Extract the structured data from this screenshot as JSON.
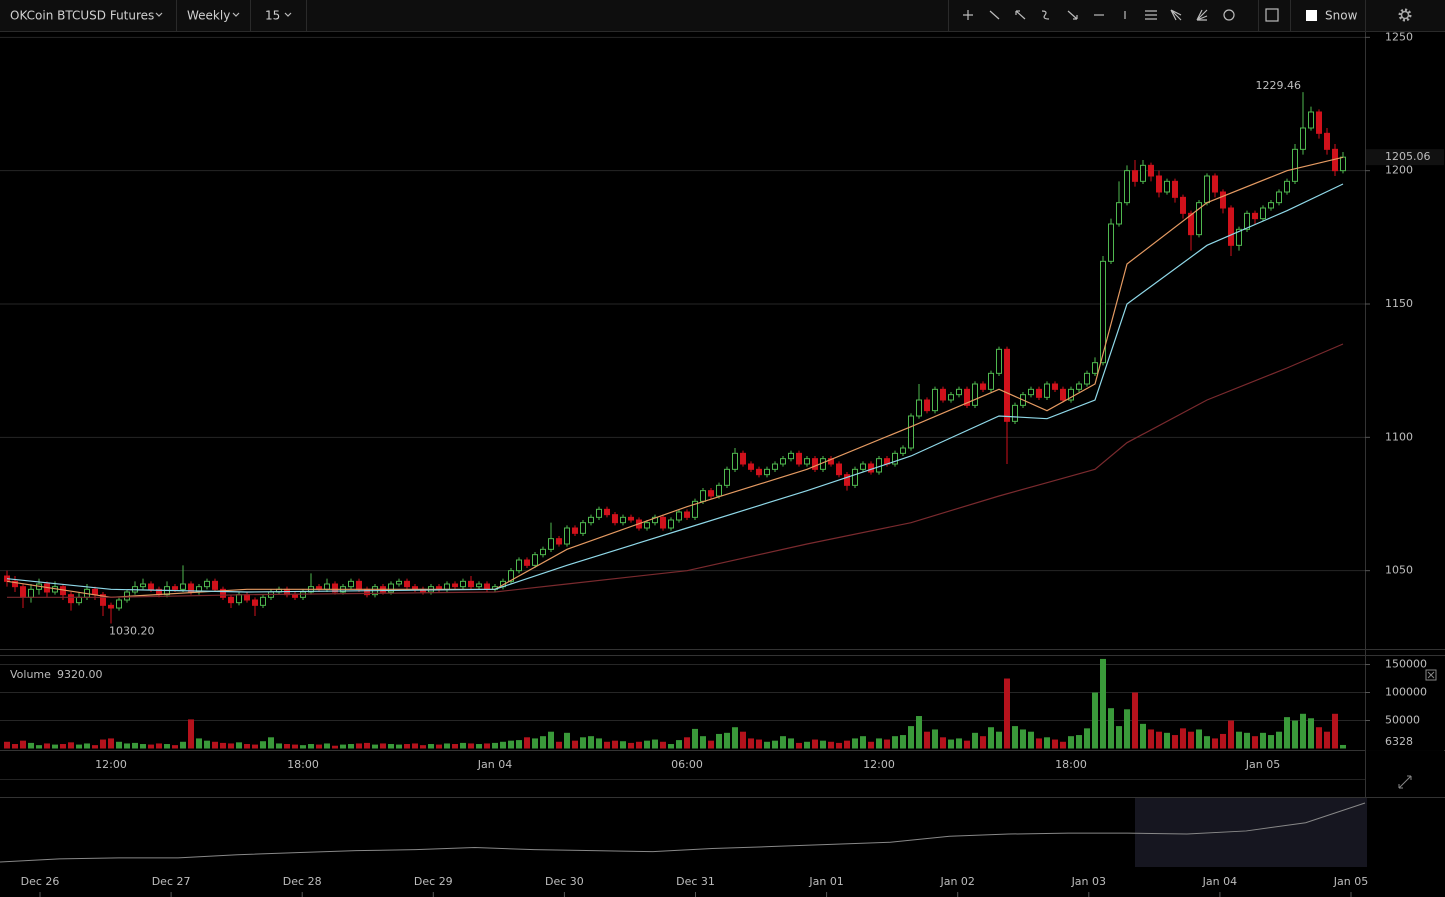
{
  "toolbar": {
    "symbol": "OKCoin BTCUSD Futures",
    "range": "Weekly",
    "interval": "15",
    "theme": "Snow"
  },
  "chart_data": {
    "type": "candlestick",
    "categories": [
      null,
      null,
      null,
      null,
      null,
      null,
      null,
      null,
      null,
      null,
      null,
      null,
      null,
      "12:00",
      null,
      null,
      null,
      null,
      null,
      null,
      null,
      null,
      null,
      null,
      null,
      null,
      null,
      null,
      null,
      null,
      null,
      null,
      null,
      null,
      null,
      null,
      null,
      "18:00",
      null,
      null,
      null,
      null,
      null,
      null,
      null,
      null,
      null,
      null,
      null,
      null,
      null,
      null,
      null,
      null,
      null,
      null,
      null,
      null,
      null,
      null,
      null,
      "Jan 04",
      null,
      null,
      null,
      null,
      null,
      null,
      null,
      null,
      null,
      null,
      null,
      null,
      null,
      null,
      null,
      null,
      null,
      null,
      null,
      null,
      null,
      null,
      null,
      "06:00",
      null,
      null,
      null,
      null,
      null,
      null,
      null,
      null,
      null,
      null,
      null,
      null,
      null,
      null,
      null,
      null,
      null,
      null,
      null,
      null,
      null,
      null,
      null,
      "12:00",
      null,
      null,
      null,
      null,
      null,
      null,
      null,
      null,
      null,
      null,
      null,
      null,
      null,
      null,
      null,
      null,
      null,
      null,
      null,
      null,
      null,
      null,
      null,
      "18:00",
      null,
      null,
      null,
      null,
      null,
      null,
      null,
      null,
      null,
      null,
      null,
      null,
      null,
      null,
      null,
      null,
      null,
      null,
      null,
      null,
      null,
      null,
      null,
      "Jan 05",
      null,
      null,
      null,
      null,
      null,
      null,
      null,
      null,
      null,
      null
    ],
    "ohlc": [
      [
        1048,
        1050,
        1044,
        1046
      ],
      [
        1046,
        1048,
        1042,
        1044
      ],
      [
        1044,
        1045,
        1036,
        1040
      ],
      [
        1040,
        1045,
        1038,
        1043
      ],
      [
        1043,
        1047,
        1041,
        1045
      ],
      [
        1045,
        1046,
        1040,
        1042
      ],
      [
        1042,
        1046,
        1041,
        1044
      ],
      [
        1044,
        1045,
        1039,
        1041
      ],
      [
        1041,
        1042,
        1035,
        1038
      ],
      [
        1038,
        1042,
        1037,
        1040
      ],
      [
        1040,
        1045,
        1039,
        1043
      ],
      [
        1043,
        1044,
        1039,
        1041
      ],
      [
        1041,
        1042,
        1033,
        1037
      ],
      [
        1037,
        1038,
        1030.2,
        1036
      ],
      [
        1036,
        1040,
        1035,
        1039
      ],
      [
        1039,
        1043,
        1038,
        1042
      ],
      [
        1042,
        1046,
        1041,
        1044
      ],
      [
        1044,
        1047,
        1043,
        1045
      ],
      [
        1045,
        1046,
        1042,
        1043
      ],
      [
        1043,
        1044,
        1040,
        1041
      ],
      [
        1041,
        1046,
        1040,
        1044
      ],
      [
        1044,
        1045,
        1042,
        1043
      ],
      [
        1043,
        1052,
        1042,
        1045
      ],
      [
        1045,
        1046,
        1041,
        1042
      ],
      [
        1042,
        1045,
        1041,
        1044
      ],
      [
        1044,
        1047,
        1043,
        1046
      ],
      [
        1046,
        1047,
        1042,
        1043
      ],
      [
        1043,
        1044,
        1039,
        1040
      ],
      [
        1040,
        1041,
        1036,
        1038
      ],
      [
        1038,
        1042,
        1037,
        1041
      ],
      [
        1041,
        1042,
        1038,
        1039
      ],
      [
        1039,
        1040,
        1033,
        1037
      ],
      [
        1037,
        1041,
        1036,
        1040
      ],
      [
        1040,
        1043,
        1039,
        1042
      ],
      [
        1042,
        1044,
        1041,
        1043
      ],
      [
        1043,
        1044,
        1040,
        1041
      ],
      [
        1041,
        1042,
        1039,
        1040
      ],
      [
        1040,
        1043,
        1039,
        1042
      ],
      [
        1042,
        1049,
        1041,
        1044
      ],
      [
        1044,
        1045,
        1042,
        1043
      ],
      [
        1043,
        1047,
        1042,
        1045
      ],
      [
        1045,
        1046,
        1041,
        1042
      ],
      [
        1042,
        1045,
        1041,
        1044
      ],
      [
        1044,
        1047,
        1043,
        1046
      ],
      [
        1046,
        1047,
        1042,
        1043
      ],
      [
        1043,
        1044,
        1040,
        1041
      ],
      [
        1041,
        1045,
        1040,
        1044
      ],
      [
        1044,
        1045,
        1041,
        1042
      ],
      [
        1042,
        1046,
        1041,
        1045
      ],
      [
        1045,
        1047,
        1044,
        1046
      ],
      [
        1046,
        1047,
        1043,
        1044
      ],
      [
        1044,
        1045,
        1042,
        1043
      ],
      [
        1043,
        1044,
        1041,
        1042
      ],
      [
        1042,
        1045,
        1041,
        1044
      ],
      [
        1044,
        1045,
        1042,
        1043
      ],
      [
        1043,
        1046,
        1042,
        1045
      ],
      [
        1045,
        1046,
        1043,
        1044
      ],
      [
        1044,
        1047,
        1043,
        1046
      ],
      [
        1046,
        1048,
        1043,
        1044
      ],
      [
        1044,
        1046,
        1043,
        1045
      ],
      [
        1045,
        1046,
        1042,
        1043
      ],
      [
        1043,
        1045,
        1042,
        1044
      ],
      [
        1044,
        1047,
        1043,
        1046
      ],
      [
        1046,
        1051,
        1045,
        1050
      ],
      [
        1050,
        1055,
        1049,
        1054
      ],
      [
        1054,
        1055,
        1051,
        1052
      ],
      [
        1052,
        1057,
        1051,
        1056
      ],
      [
        1056,
        1059,
        1055,
        1058
      ],
      [
        1058,
        1068,
        1057,
        1062
      ],
      [
        1062,
        1063,
        1059,
        1060
      ],
      [
        1060,
        1067,
        1059,
        1066
      ],
      [
        1066,
        1067,
        1063,
        1064
      ],
      [
        1064,
        1069,
        1063,
        1068
      ],
      [
        1068,
        1071,
        1067,
        1070
      ],
      [
        1070,
        1074,
        1069,
        1073
      ],
      [
        1073,
        1074,
        1070,
        1071
      ],
      [
        1071,
        1072,
        1067,
        1068
      ],
      [
        1068,
        1071,
        1067,
        1070
      ],
      [
        1070,
        1071,
        1068,
        1069
      ],
      [
        1069,
        1070,
        1065,
        1066
      ],
      [
        1066,
        1069,
        1065,
        1068
      ],
      [
        1068,
        1071,
        1067,
        1070
      ],
      [
        1070,
        1071,
        1065,
        1066
      ],
      [
        1066,
        1070,
        1065,
        1069
      ],
      [
        1069,
        1073,
        1068,
        1072
      ],
      [
        1072,
        1073,
        1069,
        1070
      ],
      [
        1070,
        1077,
        1069,
        1076
      ],
      [
        1076,
        1081,
        1075,
        1080
      ],
      [
        1080,
        1081,
        1077,
        1078
      ],
      [
        1078,
        1083,
        1077,
        1082
      ],
      [
        1082,
        1089,
        1081,
        1088
      ],
      [
        1088,
        1096,
        1087,
        1094
      ],
      [
        1094,
        1095,
        1089,
        1090
      ],
      [
        1090,
        1091,
        1087,
        1088
      ],
      [
        1088,
        1089,
        1085,
        1086
      ],
      [
        1086,
        1089,
        1085,
        1088
      ],
      [
        1088,
        1091,
        1087,
        1090
      ],
      [
        1090,
        1093,
        1089,
        1092
      ],
      [
        1092,
        1095,
        1091,
        1094
      ],
      [
        1094,
        1095,
        1089,
        1090
      ],
      [
        1090,
        1093,
        1089,
        1092
      ],
      [
        1092,
        1093,
        1087,
        1088
      ],
      [
        1088,
        1093,
        1087,
        1092
      ],
      [
        1092,
        1093,
        1089,
        1090
      ],
      [
        1090,
        1091,
        1085,
        1086
      ],
      [
        1086,
        1087,
        1080,
        1082
      ],
      [
        1082,
        1089,
        1081,
        1088
      ],
      [
        1088,
        1091,
        1087,
        1090
      ],
      [
        1090,
        1091,
        1086,
        1087
      ],
      [
        1087,
        1093,
        1086,
        1092
      ],
      [
        1092,
        1093,
        1089,
        1090
      ],
      [
        1090,
        1095,
        1089,
        1094
      ],
      [
        1094,
        1097,
        1093,
        1096
      ],
      [
        1096,
        1109,
        1095,
        1108
      ],
      [
        1108,
        1120,
        1107,
        1114
      ],
      [
        1114,
        1115,
        1109,
        1110
      ],
      [
        1110,
        1119,
        1109,
        1118
      ],
      [
        1118,
        1119,
        1113,
        1114
      ],
      [
        1114,
        1117,
        1113,
        1116
      ],
      [
        1116,
        1119,
        1115,
        1118
      ],
      [
        1118,
        1119,
        1111,
        1112
      ],
      [
        1112,
        1121,
        1111,
        1120
      ],
      [
        1120,
        1121,
        1117,
        1118
      ],
      [
        1118,
        1125,
        1117,
        1124
      ],
      [
        1124,
        1134,
        1123,
        1133
      ],
      [
        1133,
        1134,
        1090,
        1106
      ],
      [
        1106,
        1113,
        1105,
        1112
      ],
      [
        1112,
        1117,
        1111,
        1116
      ],
      [
        1116,
        1119,
        1115,
        1118
      ],
      [
        1118,
        1119,
        1114,
        1115
      ],
      [
        1115,
        1121,
        1114,
        1120
      ],
      [
        1120,
        1121,
        1117,
        1118
      ],
      [
        1118,
        1119,
        1113,
        1114
      ],
      [
        1114,
        1119,
        1113,
        1118
      ],
      [
        1118,
        1121,
        1117,
        1120
      ],
      [
        1120,
        1125,
        1119,
        1124
      ],
      [
        1124,
        1130,
        1123,
        1128
      ],
      [
        1128,
        1168,
        1127,
        1166
      ],
      [
        1166,
        1182,
        1165,
        1180
      ],
      [
        1180,
        1196,
        1179,
        1188
      ],
      [
        1188,
        1202,
        1187,
        1200
      ],
      [
        1200,
        1204,
        1194,
        1196
      ],
      [
        1196,
        1204,
        1195,
        1202
      ],
      [
        1202,
        1203,
        1196,
        1198
      ],
      [
        1198,
        1200,
        1190,
        1192
      ],
      [
        1192,
        1197,
        1191,
        1196
      ],
      [
        1196,
        1197,
        1188,
        1190
      ],
      [
        1190,
        1191,
        1182,
        1184
      ],
      [
        1184,
        1185,
        1170,
        1176
      ],
      [
        1176,
        1189,
        1175,
        1188
      ],
      [
        1188,
        1199,
        1187,
        1198
      ],
      [
        1198,
        1199,
        1190,
        1192
      ],
      [
        1192,
        1193,
        1184,
        1186
      ],
      [
        1186,
        1187,
        1168,
        1172
      ],
      [
        1172,
        1179,
        1170,
        1178
      ],
      [
        1178,
        1185,
        1177,
        1184
      ],
      [
        1184,
        1185,
        1180,
        1182
      ],
      [
        1182,
        1187,
        1181,
        1186
      ],
      [
        1186,
        1189,
        1185,
        1188
      ],
      [
        1188,
        1193,
        1187,
        1192
      ],
      [
        1192,
        1197,
        1191,
        1196
      ],
      [
        1196,
        1210,
        1195,
        1208
      ],
      [
        1208,
        1229.46,
        1206,
        1216
      ],
      [
        1216,
        1224,
        1215,
        1222
      ],
      [
        1222,
        1223,
        1212,
        1214
      ],
      [
        1214,
        1216,
        1206,
        1208
      ],
      [
        1208,
        1210,
        1198,
        1200
      ],
      [
        1200,
        1207,
        1199,
        1205.06
      ]
    ],
    "colors": {
      "up": "#4fb84f",
      "down": "#d0111b"
    },
    "ylim": [
      1021,
      1252
    ],
    "yticks": [
      1050,
      1100,
      1150,
      1200,
      1250
    ],
    "grid": true,
    "extreme_labels": {
      "high": "1229.46",
      "low": "1030.20"
    },
    "lines": [
      {
        "color": "#e49a62",
        "x": [
          0,
          13,
          30,
          61,
          70,
          85,
          100,
          113,
          124,
          130,
          136,
          140,
          150,
          160,
          167
        ],
        "values": [
          1046,
          1040,
          1043,
          1043,
          1058,
          1074,
          1088,
          1104,
          1118,
          1110,
          1120,
          1165,
          1188,
          1200,
          1205
        ]
      },
      {
        "color": "#8fd8e8",
        "x": [
          0,
          13,
          30,
          61,
          70,
          85,
          100,
          113,
          124,
          130,
          136,
          140,
          150,
          160,
          167
        ],
        "values": [
          1047,
          1043,
          1042,
          1043,
          1052,
          1066,
          1080,
          1093,
          1108,
          1107,
          1114,
          1150,
          1172,
          1185,
          1195
        ]
      },
      {
        "color": "#7a2a2e",
        "x": [
          0,
          13,
          30,
          61,
          70,
          85,
          100,
          113,
          124,
          130,
          136,
          140,
          150,
          160,
          167
        ],
        "values": [
          1040,
          1040,
          1041,
          1042,
          1045,
          1050,
          1060,
          1068,
          1078,
          1083,
          1088,
          1098,
          1114,
          1126,
          1135
        ]
      }
    ],
    "volume": {
      "label": "Volume",
      "readout": "9320.00",
      "ylim": [
        0,
        167000
      ],
      "yticks": [
        50000,
        100000,
        150000
      ],
      "values": [
        12000,
        8000,
        14000,
        10000,
        6000,
        9000,
        7000,
        8000,
        11000,
        7000,
        9000,
        6000,
        16000,
        18000,
        12000,
        9000,
        10000,
        8000,
        7000,
        9000,
        8000,
        6000,
        12000,
        52000,
        18000,
        14000,
        12000,
        10000,
        9000,
        11000,
        8000,
        7000,
        13000,
        20000,
        9000,
        8000,
        7000,
        6000,
        8000,
        7000,
        9000,
        5000,
        7000,
        8000,
        9000,
        10000,
        7000,
        9000,
        8000,
        7000,
        8000,
        9000,
        6000,
        8000,
        7000,
        9000,
        8000,
        10000,
        9000,
        8000,
        9000,
        10000,
        12000,
        14000,
        15000,
        20000,
        18000,
        22000,
        30000,
        12000,
        28000,
        14000,
        20000,
        22000,
        18000,
        12000,
        14000,
        13000,
        10000,
        12000,
        14000,
        16000,
        12000,
        8000,
        15000,
        20000,
        35000,
        22000,
        14000,
        26000,
        28000,
        38000,
        30000,
        18000,
        16000,
        12000,
        14000,
        22000,
        18000,
        10000,
        12000,
        16000,
        14000,
        12000,
        10000,
        14000,
        18000,
        22000,
        12000,
        18000,
        16000,
        22000,
        24000,
        40000,
        58000,
        30000,
        34000,
        20000,
        16000,
        18000,
        14000,
        28000,
        22000,
        38000,
        30000,
        125000,
        40000,
        34000,
        30000,
        18000,
        20000,
        16000,
        12000,
        22000,
        24000,
        36000,
        100000,
        160000,
        72000,
        40000,
        70000,
        100000,
        44000,
        34000,
        30000,
        28000,
        24000,
        36000,
        30000,
        34000,
        22000,
        18000,
        26000,
        50000,
        30000,
        28000,
        22000,
        28000,
        24000,
        30000,
        56000,
        50000,
        62000,
        54000,
        38000,
        30000,
        62000,
        6328
      ]
    },
    "navigator": {
      "labels": [
        "Dec 26",
        "Dec 27",
        "Dec 28",
        "Dec 29",
        "Dec 30",
        "Dec 31",
        "Jan 01",
        "Jan 02",
        "Jan 03",
        "Jan 04",
        "Jan 05"
      ],
      "values": [
        870,
        889,
        895,
        895,
        914,
        927,
        939,
        945,
        958,
        945,
        939,
        933,
        952,
        964,
        977,
        990,
        1027,
        1040,
        1046,
        1046,
        1040,
        1059,
        1109,
        1229
      ]
    }
  }
}
